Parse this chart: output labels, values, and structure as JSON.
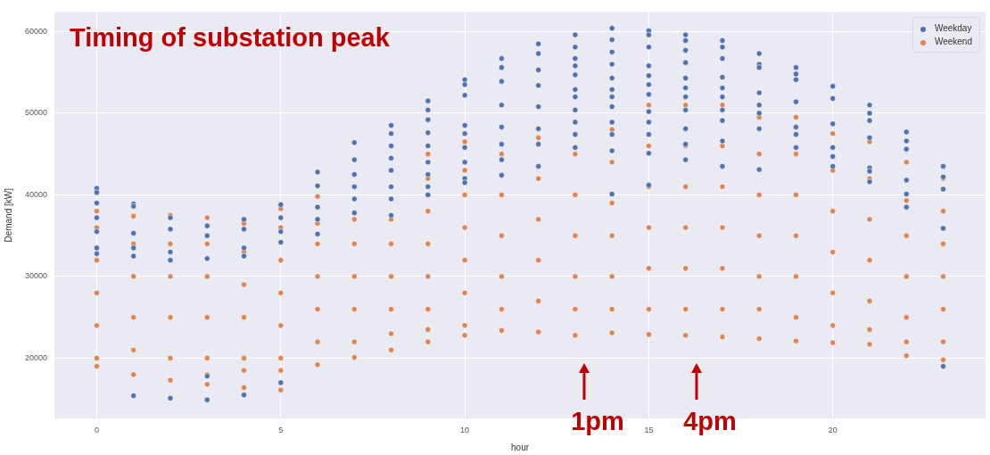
{
  "chart_data": {
    "type": "scatter",
    "title": "Timing of substation peak",
    "xlabel": "hour",
    "ylabel": "Demand [kW]",
    "xlim": [
      -1.15,
      24.15
    ],
    "xticks": [
      0,
      5,
      10,
      15,
      20
    ],
    "ylim": [
      12600,
      62400
    ],
    "yticks": [
      20000,
      30000,
      40000,
      50000,
      60000
    ],
    "grid": true,
    "legend": "top right",
    "marker": "circle",
    "series": [
      {
        "name": "Weekday",
        "color": "#4c72b0",
        "x": [
          0,
          0,
          0,
          0,
          0,
          0,
          0,
          1,
          1,
          1,
          1,
          1,
          1,
          2,
          2,
          2,
          2,
          2,
          3,
          3,
          3,
          3,
          3,
          4,
          4,
          4,
          4,
          4,
          5,
          5,
          5,
          5,
          5,
          6,
          6,
          6,
          6,
          6,
          7,
          7,
          7,
          7,
          7,
          7,
          8,
          8,
          8,
          8,
          8,
          8,
          8,
          8,
          9,
          9,
          9,
          9,
          9,
          9,
          9,
          9,
          9,
          10,
          10,
          10,
          10,
          10,
          10,
          10,
          10,
          10,
          11,
          11,
          11,
          11,
          11,
          11,
          11,
          11,
          12,
          12,
          12,
          12,
          12,
          12,
          12,
          12,
          13,
          13,
          13,
          13,
          13,
          13,
          13,
          13,
          13,
          13,
          13,
          14,
          14,
          14,
          14,
          14,
          14,
          14,
          14,
          14,
          14,
          14,
          14,
          15,
          15,
          15,
          15,
          15,
          15,
          15,
          15,
          15,
          15,
          15,
          15,
          16,
          16,
          16,
          16,
          16,
          16,
          16,
          16,
          16,
          16,
          16,
          17,
          17,
          17,
          17,
          17,
          17,
          17,
          17,
          17,
          17,
          18,
          18,
          18,
          18,
          18,
          18,
          18,
          18,
          19,
          19,
          19,
          19,
          19,
          19,
          19,
          20,
          20,
          20,
          20,
          20,
          20,
          21,
          21,
          21,
          21,
          21,
          21,
          21,
          22,
          22,
          22,
          22,
          22,
          22,
          23,
          23,
          23,
          23,
          23
        ],
        "values": [
          40800,
          40300,
          39000,
          37200,
          35500,
          33500,
          32800,
          38900,
          38600,
          35300,
          33500,
          32500,
          15400,
          37200,
          35800,
          33000,
          32000,
          15100,
          36200,
          35000,
          32200,
          17800,
          14900,
          37000,
          35800,
          33500,
          32500,
          15500,
          38800,
          37200,
          35500,
          34200,
          17000,
          42800,
          41100,
          38500,
          37000,
          35200,
          46400,
          44300,
          42500,
          41000,
          39500,
          37800,
          48500,
          47500,
          46000,
          44500,
          43000,
          41000,
          39500,
          37500,
          51500,
          50400,
          49200,
          47600,
          46000,
          44000,
          42500,
          41000,
          40000,
          54100,
          53500,
          52200,
          48500,
          47500,
          45800,
          44000,
          42000,
          41500,
          56700,
          55600,
          53900,
          51000,
          48300,
          46200,
          44300,
          42400,
          58500,
          57300,
          55300,
          53400,
          50800,
          48100,
          46200,
          43500,
          59600,
          58100,
          56700,
          55800,
          54700,
          52900,
          52000,
          50400,
          48900,
          47400,
          45800,
          60400,
          59000,
          57500,
          56000,
          54300,
          52900,
          52000,
          50800,
          48900,
          47400,
          45400,
          40100,
          60100,
          59600,
          58100,
          55800,
          54600,
          53500,
          52300,
          50200,
          48900,
          47400,
          45100,
          41200,
          59600,
          58900,
          57700,
          56200,
          54300,
          53100,
          52000,
          50400,
          48100,
          46200,
          44300,
          58900,
          58100,
          56700,
          54400,
          53100,
          52000,
          50400,
          49100,
          46600,
          43500,
          57300,
          56000,
          55600,
          52500,
          51000,
          50000,
          48100,
          43100,
          55600,
          54800,
          54100,
          51400,
          48300,
          47400,
          45800,
          53300,
          51800,
          48700,
          45800,
          44700,
          43500,
          51000,
          50000,
          49100,
          47000,
          43300,
          42900,
          41600,
          47700,
          46600,
          45600,
          41800,
          40100,
          38500,
          43500,
          42200,
          40700,
          35900,
          19000
        ]
      },
      {
        "name": "Weekend",
        "color": "#dd8452",
        "x": [
          0,
          0,
          0,
          0,
          0,
          0,
          0,
          1,
          1,
          1,
          1,
          1,
          1,
          2,
          2,
          2,
          2,
          2,
          2,
          3,
          3,
          3,
          3,
          3,
          3,
          3,
          4,
          4,
          4,
          4,
          4,
          4,
          4,
          5,
          5,
          5,
          5,
          5,
          5,
          5,
          5,
          6,
          6,
          6,
          6,
          6,
          6,
          6,
          7,
          7,
          7,
          7,
          7,
          7,
          8,
          8,
          8,
          8,
          8,
          8,
          9,
          9,
          9,
          9,
          9,
          9,
          9,
          9,
          10,
          10,
          10,
          10,
          10,
          10,
          10,
          10,
          11,
          11,
          11,
          11,
          11,
          11,
          12,
          12,
          12,
          12,
          12,
          12,
          13,
          13,
          13,
          13,
          13,
          13,
          14,
          14,
          14,
          14,
          14,
          14,
          14,
          15,
          15,
          15,
          15,
          15,
          15,
          15,
          16,
          16,
          16,
          16,
          16,
          16,
          16,
          17,
          17,
          17,
          17,
          17,
          17,
          17,
          18,
          18,
          18,
          18,
          18,
          18,
          18,
          19,
          19,
          19,
          19,
          19,
          19,
          19,
          20,
          20,
          20,
          20,
          20,
          20,
          20,
          21,
          21,
          21,
          21,
          21,
          21,
          21,
          22,
          22,
          22,
          22,
          22,
          22,
          22,
          23,
          23,
          23,
          23,
          23,
          23,
          23
        ],
        "values": [
          38000,
          36000,
          32000,
          28000,
          24000,
          20000,
          19000,
          37400,
          34000,
          30000,
          25000,
          21000,
          18000,
          37500,
          34000,
          30000,
          25000,
          20000,
          17300,
          37200,
          34000,
          30000,
          25000,
          20000,
          18000,
          16800,
          36500,
          33000,
          29000,
          25000,
          20000,
          18500,
          16400,
          38300,
          36000,
          32000,
          28000,
          24000,
          20000,
          18500,
          16100,
          39800,
          36500,
          34000,
          30000,
          26000,
          22000,
          19200,
          37000,
          34000,
          30000,
          26000,
          22000,
          20100,
          37000,
          34000,
          30000,
          26000,
          23000,
          21000,
          45000,
          42000,
          38000,
          34000,
          30000,
          26000,
          23500,
          22000,
          46500,
          43000,
          40000,
          36000,
          32000,
          28000,
          24000,
          22800,
          45000,
          40000,
          35000,
          30000,
          26000,
          23400,
          47000,
          42000,
          37000,
          32000,
          27000,
          23200,
          45000,
          40000,
          35000,
          30000,
          26000,
          22800,
          48000,
          44000,
          39000,
          35000,
          30000,
          26000,
          23100,
          51000,
          46000,
          41000,
          36000,
          31000,
          26000,
          22900,
          51000,
          46000,
          41000,
          36000,
          31000,
          26000,
          22800,
          51000,
          46000,
          41000,
          36000,
          31000,
          26000,
          22600,
          49500,
          45000,
          40000,
          35000,
          30000,
          26000,
          22400,
          49500,
          45000,
          40000,
          35000,
          30000,
          25000,
          22100,
          47500,
          43000,
          38000,
          33000,
          28000,
          24000,
          21900,
          46500,
          42000,
          37000,
          32000,
          27000,
          23500,
          21700,
          44000,
          39300,
          35000,
          30000,
          25000,
          22000,
          20300,
          42000,
          38000,
          34000,
          30000,
          26000,
          22000,
          19800
        ]
      }
    ],
    "annotations": [
      "1pm",
      "4pm"
    ]
  }
}
